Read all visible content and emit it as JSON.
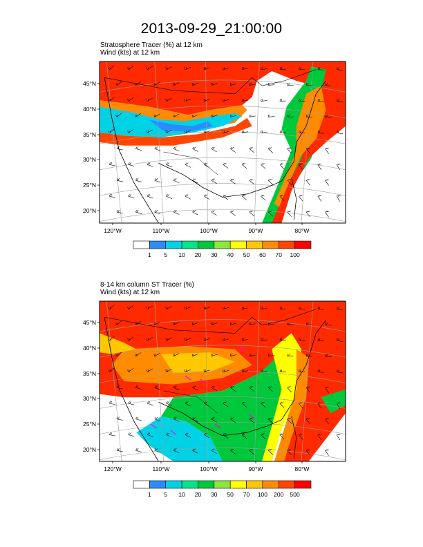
{
  "title": "2013-09-29_21:00:00",
  "panels": [
    {
      "subtitle_line1": "Stratosphere Tracer   (%)     at   12 km",
      "subtitle_line2": "Wind   (kts)     at   12 km",
      "lat_labels": [
        "45°N",
        "40°N",
        "35°N",
        "30°N",
        "25°N",
        "20°N"
      ],
      "lon_labels": [
        "120°W",
        "110°W",
        "100°W",
        "90°W",
        "80°W"
      ],
      "colorbar_labels": [
        "1",
        "5",
        "10",
        "20",
        "30",
        "40",
        "50",
        "60",
        "70",
        "100"
      ]
    },
    {
      "subtitle_line1": "8-14 km column ST Tracer   (%)",
      "subtitle_line2": "Wind   (kts)     at   12 km",
      "lat_labels": [
        "45°N",
        "40°N",
        "35°N",
        "30°N",
        "25°N",
        "20°N"
      ],
      "lon_labels": [
        "120°W",
        "110°W",
        "100°W",
        "90°W",
        "80°W"
      ],
      "colorbar_labels": [
        "1",
        "5",
        "10",
        "20",
        "30",
        "50",
        "70",
        "100",
        "200",
        "500"
      ]
    }
  ],
  "colors": {
    "scale": [
      "#ffffff",
      "#2a8cff",
      "#00d2e6",
      "#00e68a",
      "#00c83c",
      "#8ce63c",
      "#ffff00",
      "#ffc800",
      "#ff8c00",
      "#ff4600",
      "#ff0000"
    ],
    "panel2_scale": [
      "#ffffff",
      "#2a8cff",
      "#00d2e6",
      "#00e68a",
      "#00c83c",
      "#8ce63c",
      "#ffff00",
      "#ffc800",
      "#ff8c00",
      "#ff4600",
      "#ff0000"
    ],
    "magenta_barbs": "#ff00ff"
  }
}
